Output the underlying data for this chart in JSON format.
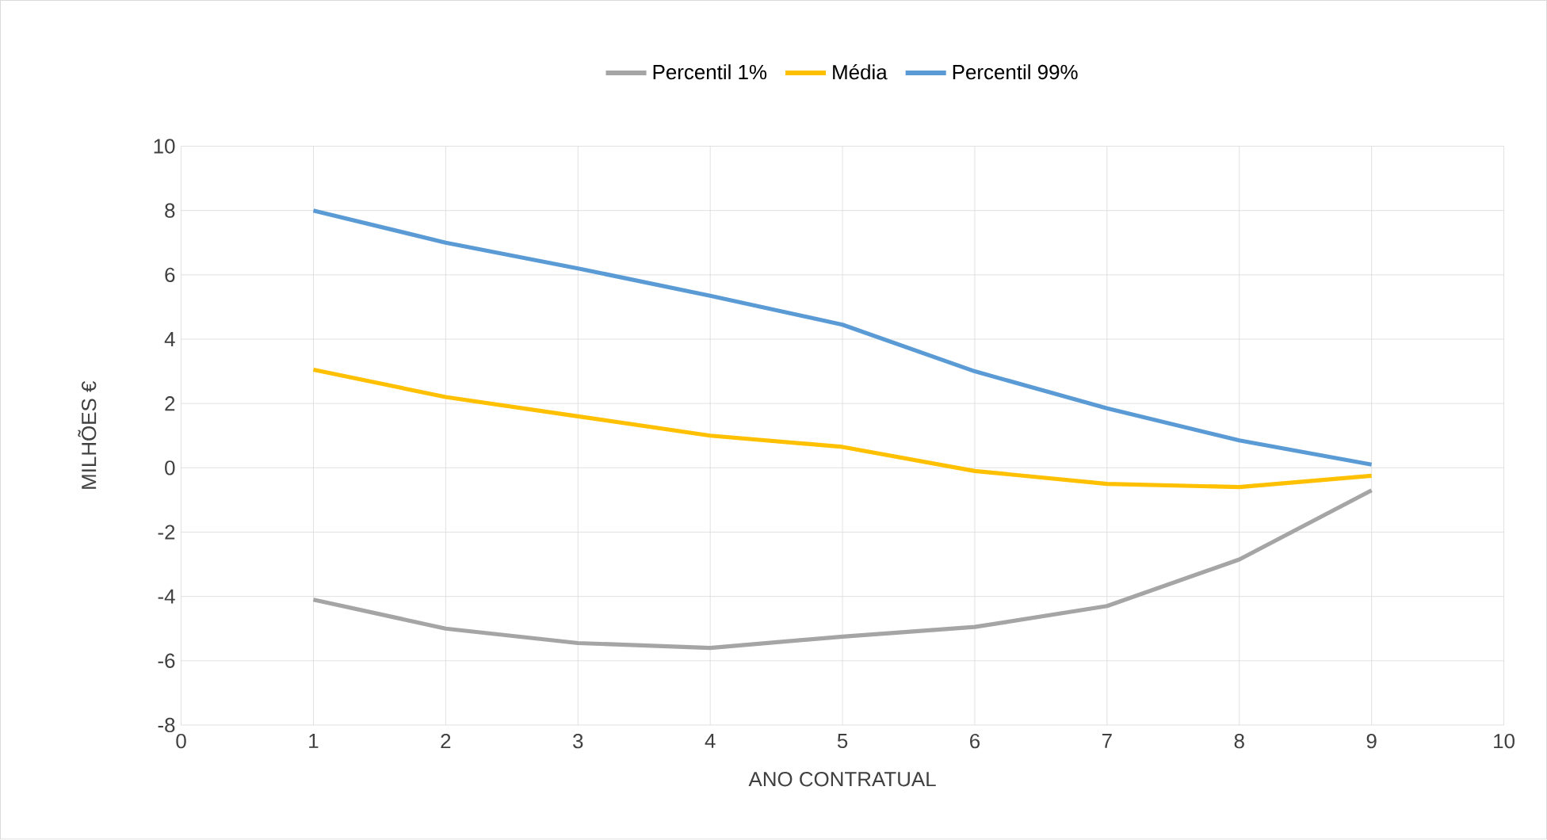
{
  "chart_data": {
    "type": "line",
    "xlabel": "ANO CONTRATUAL",
    "ylabel": "MILHÕES €",
    "x": [
      1,
      2,
      3,
      4,
      5,
      6,
      7,
      8,
      9
    ],
    "series": [
      {
        "name": "Percentil 1%",
        "color": "#a5a5a5",
        "values": [
          -4.1,
          -5.0,
          -5.45,
          -5.6,
          -5.25,
          -4.95,
          -4.3,
          -2.85,
          -0.7
        ]
      },
      {
        "name": "Média",
        "color": "#ffc000",
        "values": [
          3.05,
          2.2,
          1.6,
          1.0,
          0.65,
          -0.1,
          -0.5,
          -0.6,
          -0.25
        ]
      },
      {
        "name": "Percentil 99%",
        "color": "#5b9bd5",
        "values": [
          8.0,
          7.0,
          6.2,
          5.35,
          4.45,
          3.0,
          1.85,
          0.85,
          0.1
        ]
      }
    ],
    "xlim": [
      0,
      10
    ],
    "xticks": [
      0,
      1,
      2,
      3,
      4,
      5,
      6,
      7,
      8,
      9,
      10
    ],
    "ylim": [
      -8,
      10
    ],
    "yticks": [
      -8,
      -6,
      -4,
      -2,
      0,
      2,
      4,
      6,
      8,
      10
    ],
    "grid": true,
    "legend": "top",
    "marker": "none",
    "line_style": "solid"
  }
}
